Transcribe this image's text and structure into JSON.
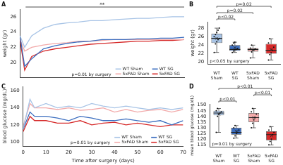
{
  "chart_data": [
    {
      "type": "line",
      "panel": "A",
      "y_label": "weight (gr)",
      "x": [
        0,
        2,
        5,
        10,
        15,
        20,
        25,
        30,
        35,
        40,
        45,
        50,
        55,
        60,
        65,
        70
      ],
      "series": [
        {
          "name": "WT Sham",
          "color": "#a8c4e6",
          "values": [
            23.5,
            22,
            23.5,
            24.5,
            25,
            25.2,
            25.3,
            25.5,
            25.5,
            25.6,
            25.7,
            25.8,
            25.8,
            25.9,
            26,
            26
          ]
        },
        {
          "name": "WT SG",
          "color": "#3a6dbf",
          "values": [
            23.5,
            19.5,
            20.5,
            21.8,
            22.2,
            22.5,
            22.7,
            22.8,
            23,
            23,
            23,
            23.1,
            23.1,
            23.2,
            23.2,
            23.3
          ]
        },
        {
          "name": "5xFAD Sham",
          "color": "#f2a9a9",
          "values": [
            23,
            21.5,
            22,
            22.3,
            22.5,
            22.6,
            22.8,
            22.8,
            22.9,
            23,
            23,
            23,
            23,
            23,
            23,
            23
          ]
        },
        {
          "name": "5xFAD SG",
          "color": "#d62a2a",
          "values": [
            23,
            19,
            20.8,
            21.5,
            21.8,
            22,
            22.2,
            22.4,
            22.5,
            22.6,
            22.7,
            22.8,
            22.8,
            22.9,
            22.9,
            23
          ]
        }
      ],
      "xlim": [
        0,
        70
      ],
      "xticks": [
        0,
        10,
        20,
        30,
        40,
        50,
        60,
        70
      ],
      "ylim": [
        18,
        27
      ],
      "yticks": [
        20,
        22,
        24,
        26
      ],
      "significance": "**",
      "note": "p=0.01 by surgery",
      "legend": "lower right",
      "grid": false,
      "tick_labels": "y"
    },
    {
      "type": "box",
      "panel": "B",
      "y_label": "weight (gr)",
      "categories": [
        "WT Sham",
        "WT SG",
        "5xFAD Sham",
        "5xFAD SG"
      ],
      "colors": [
        "#a8c4e6",
        "#3a6dbf",
        "#f2a9a9",
        "#d62a2a"
      ],
      "boxes": [
        {
          "min": 22.3,
          "q1": 24.5,
          "median": 25.6,
          "q3": 26.7,
          "max": 28,
          "mean": 25.6,
          "points": [
            22.3,
            24.3,
            24.8,
            25.3,
            25.6,
            26,
            26.5,
            27,
            27.5,
            28
          ]
        },
        {
          "min": 22.3,
          "q1": 22.7,
          "median": 23,
          "q3": 24,
          "max": 24.7,
          "mean": 23.4,
          "points": [
            22.3,
            22.6,
            22.9,
            23,
            23.2,
            24,
            24.5,
            24.7
          ]
        },
        {
          "min": 21,
          "q1": 22.5,
          "median": 23,
          "q3": 23.3,
          "max": 24,
          "mean": 22.9,
          "points": [
            21,
            22.4,
            22.8,
            23,
            23.1,
            23.3,
            24
          ]
        },
        {
          "min": 20.5,
          "q1": 22,
          "median": 22.8,
          "q3": 24.3,
          "max": 25.5,
          "mean": 23,
          "points": [
            20.5,
            21.8,
            22.2,
            22.8,
            23.5,
            24.5,
            25.5
          ]
        }
      ],
      "ylim": [
        19.5,
        29.5
      ],
      "yticks": [
        20,
        22,
        24,
        26,
        28
      ],
      "comparisons": [
        {
          "between": [
            "WT Sham",
            "WT SG"
          ],
          "label": "p<0.02"
        },
        {
          "between": [
            "WT Sham",
            "5xFAD Sham"
          ],
          "label": "p=0.02"
        },
        {
          "between": [
            "WT Sham",
            "5xFAD SG"
          ],
          "label": "p=0.02"
        }
      ],
      "note": "p<0.05 by surgery",
      "grid": false
    },
    {
      "type": "line",
      "panel": "C",
      "y_label": "blood glucose (mg/dL)",
      "x_label": "Time after surgery (days)",
      "x": [
        0,
        3,
        5,
        10,
        15,
        20,
        25,
        30,
        35,
        40,
        45,
        50,
        55,
        60,
        65,
        70
      ],
      "series": [
        {
          "name": "WT Sham",
          "color": "#a8c4e6",
          "values": [
            115,
            150,
            140,
            145,
            140,
            142,
            140,
            145,
            142,
            140,
            142,
            140,
            138,
            140,
            138,
            140
          ]
        },
        {
          "name": "WT SG",
          "color": "#3a6dbf",
          "values": [
            115,
            135,
            130,
            130,
            128,
            125,
            130,
            128,
            125,
            125,
            127,
            125,
            123,
            125,
            120,
            125
          ]
        },
        {
          "name": "5xFAD Sham",
          "color": "#f2a9a9",
          "values": [
            118,
            145,
            140,
            140,
            138,
            140,
            137,
            138,
            140,
            135,
            138,
            135,
            137,
            138,
            135,
            138
          ]
        },
        {
          "name": "5xFAD SG",
          "color": "#d62a2a",
          "values": [
            112,
            130,
            125,
            125,
            122,
            122,
            125,
            120,
            122,
            123,
            120,
            122,
            120,
            118,
            120,
            120
          ]
        }
      ],
      "xlim": [
        0,
        70
      ],
      "xticks": [
        0,
        10,
        20,
        30,
        40,
        50,
        60,
        70
      ],
      "ylim": [
        95,
        165
      ],
      "yticks": [
        100,
        120,
        140,
        160
      ],
      "note": "p=0.01 by surgery",
      "legend": "lower right",
      "grid": false
    },
    {
      "type": "box",
      "panel": "D",
      "y_label": "mean blood glucose (mg/dL)",
      "categories": [
        "WT Sham",
        "WT SG",
        "5xFAD Sham",
        "5xFAD SG"
      ],
      "colors": [
        "#a8c4e6",
        "#3a6dbf",
        "#f2a9a9",
        "#d62a2a"
      ],
      "boxes": [
        {
          "min": 126,
          "q1": 141,
          "median": 143,
          "q3": 145,
          "max": 147,
          "mean": 142,
          "points": [
            126,
            140,
            142,
            143,
            144,
            145,
            147
          ]
        },
        {
          "min": 121,
          "q1": 124,
          "median": 126,
          "q3": 130,
          "max": 132,
          "mean": 127,
          "points": [
            121,
            123,
            125,
            126,
            128,
            130,
            132
          ]
        },
        {
          "min": 130,
          "q1": 135,
          "median": 139,
          "q3": 143,
          "max": 147,
          "mean": 139,
          "points": [
            130,
            134,
            137,
            139,
            142,
            144,
            147
          ]
        },
        {
          "min": 115,
          "q1": 119,
          "median": 124,
          "q3": 127,
          "max": 131,
          "mean": 123,
          "points": [
            115,
            118,
            120,
            124,
            126,
            128,
            131
          ]
        }
      ],
      "ylim": [
        113,
        151
      ],
      "yticks": [
        115,
        120,
        125,
        130,
        135,
        140,
        145,
        150
      ],
      "comparisons": [
        {
          "between": [
            "WT Sham",
            "WT SG"
          ],
          "label": "p<0.01"
        },
        {
          "between": [
            "5xFAD Sham",
            "5xFAD SG"
          ],
          "label": "p<0.01"
        },
        {
          "between": [
            "WT Sham",
            "5xFAD SG"
          ],
          "label": "p<0.01"
        }
      ],
      "note": "p=0.01 by surgery",
      "grid": false
    }
  ]
}
